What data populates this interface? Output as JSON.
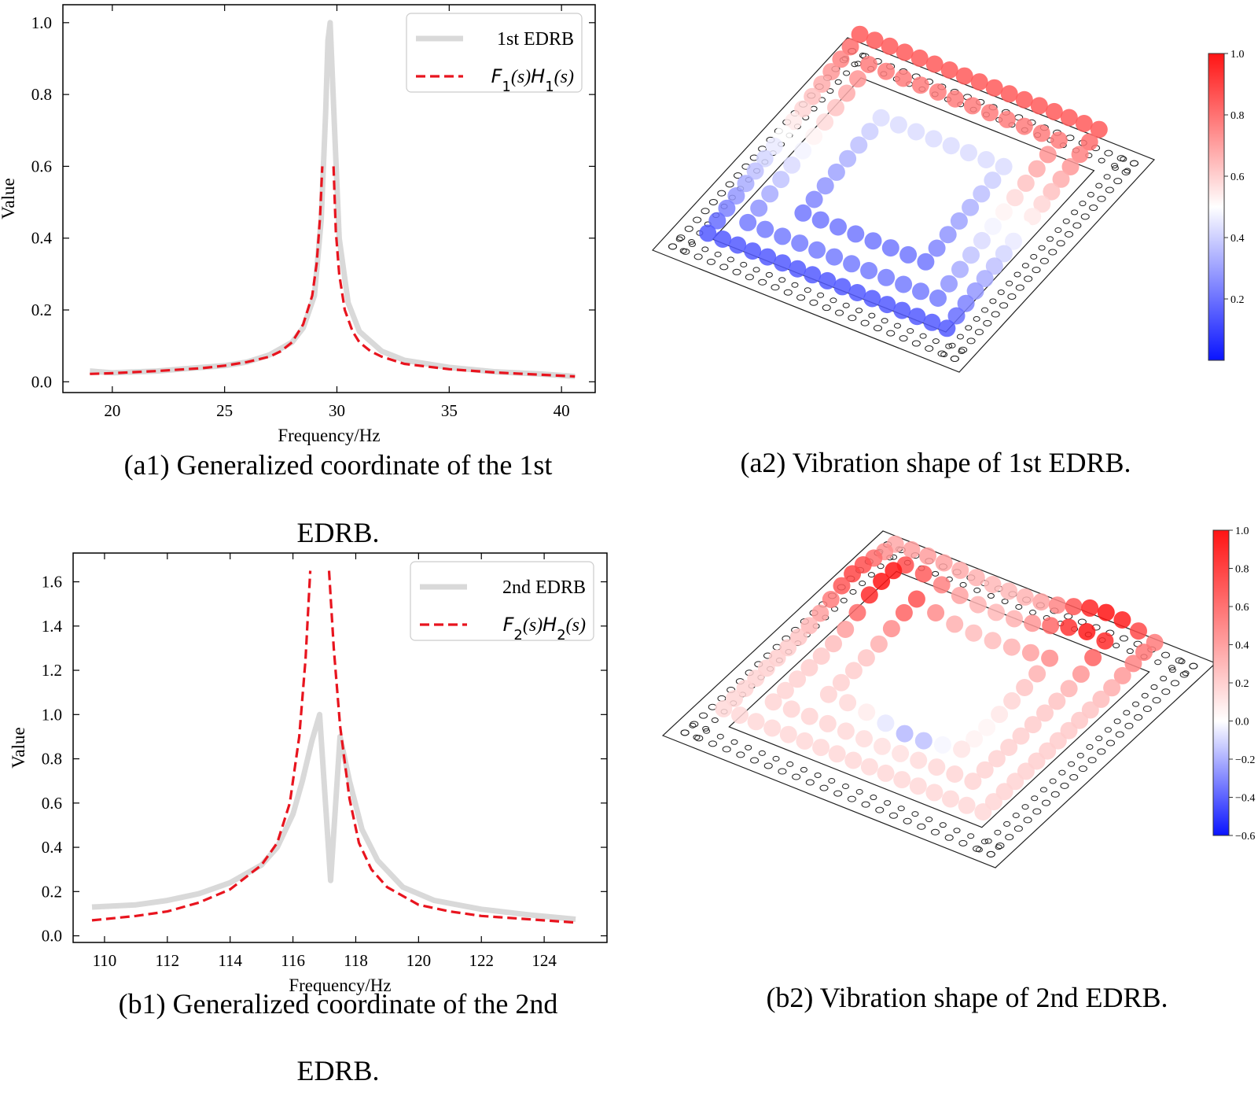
{
  "captions": {
    "a1_line1": "(a1) Generalized coordinate of the 1st",
    "a1_line2": "EDRB.",
    "a2": "(a2) Vibration shape of 1st EDRB.",
    "b1_line1": "(b1) Generalized coordinate of the 2nd",
    "b1_line2": "EDRB.",
    "b2": "(b2) Vibration shape of 2nd EDRB."
  },
  "colors": {
    "gray_curve": "#d9d9d9",
    "red_dashed": "#e8141e",
    "cmap_low": "#0a14ff",
    "cmap_mid": "#ffffff",
    "cmap_high": "#ff1414"
  },
  "chart_data": [
    {
      "id": "a1",
      "type": "line",
      "xlabel": "Frequency/Hz",
      "ylabel": "Value",
      "xlim": [
        17.8,
        41.5
      ],
      "ylim": [
        -0.03,
        1.05
      ],
      "xticks": [
        20,
        25,
        30,
        35,
        40
      ],
      "yticks": [
        0.0,
        0.2,
        0.4,
        0.6,
        0.8,
        1.0
      ],
      "ytick_decimals": 1,
      "legend_position": "top-right",
      "series": [
        {
          "name": "1st EDRB",
          "style": "solid-gray",
          "x": [
            19.0,
            20.0,
            22.0,
            24.0,
            25.0,
            26.0,
            27.0,
            28.0,
            28.5,
            29.0,
            29.3,
            29.5,
            29.6,
            29.7,
            29.9,
            30.1,
            30.5,
            31.0,
            32.0,
            33.0,
            35.0,
            37.0,
            39.0,
            40.6
          ],
          "y": [
            0.03,
            0.025,
            0.03,
            0.04,
            0.045,
            0.055,
            0.075,
            0.11,
            0.15,
            0.24,
            0.45,
            0.75,
            0.95,
            1.0,
            0.7,
            0.4,
            0.22,
            0.14,
            0.085,
            0.06,
            0.04,
            0.028,
            0.022,
            0.015
          ]
        },
        {
          "name": "$F_1(s)H_1(s)$",
          "style": "dashed-red",
          "x": [
            19.0,
            20.0,
            22.0,
            24.0,
            25.0,
            26.0,
            27.0,
            27.5,
            28.0,
            28.5,
            28.9,
            29.1,
            29.25,
            29.35,
            null,
            29.85,
            29.95,
            30.1,
            30.35,
            30.7,
            31.0,
            31.5,
            32.0,
            33.0,
            35.0,
            37.0,
            39.0,
            40.6
          ],
          "y": [
            0.022,
            0.024,
            0.03,
            0.038,
            0.045,
            0.055,
            0.07,
            0.085,
            0.11,
            0.16,
            0.24,
            0.33,
            0.46,
            0.6,
            null,
            0.6,
            0.42,
            0.3,
            0.2,
            0.14,
            0.11,
            0.085,
            0.07,
            0.05,
            0.035,
            0.026,
            0.02,
            0.015
          ]
        }
      ]
    },
    {
      "id": "b1",
      "type": "line",
      "xlabel": "Frequency/Hz",
      "ylabel": "Value",
      "xlim": [
        109.0,
        126.0
      ],
      "ylim": [
        -0.03,
        1.73
      ],
      "xticks": [
        110,
        112,
        114,
        116,
        118,
        120,
        122,
        124
      ],
      "yticks": [
        0.0,
        0.2,
        0.4,
        0.6,
        0.8,
        1.0,
        1.2,
        1.4,
        1.6
      ],
      "ytick_decimals": 1,
      "legend_position": "top-right",
      "series": [
        {
          "name": "2nd EDRB",
          "style": "solid-gray",
          "x": [
            109.6,
            111.0,
            112.0,
            113.0,
            114.0,
            115.0,
            115.5,
            116.0,
            116.3,
            116.6,
            116.85,
            117.2,
            117.5,
            117.8,
            118.2,
            118.7,
            119.5,
            120.5,
            122.0,
            123.5,
            125.0
          ],
          "y": [
            0.13,
            0.14,
            0.16,
            0.19,
            0.24,
            0.32,
            0.4,
            0.55,
            0.7,
            0.88,
            1.0,
            0.25,
            0.9,
            0.7,
            0.48,
            0.34,
            0.22,
            0.16,
            0.12,
            0.095,
            0.075
          ]
        },
        {
          "name": "$F_2(s)H_2(s)$",
          "style": "dashed-red",
          "x": [
            109.6,
            111.0,
            112.0,
            113.0,
            114.0,
            115.0,
            115.5,
            115.9,
            116.2,
            116.4,
            116.55,
            null,
            117.15,
            117.3,
            117.5,
            117.8,
            118.1,
            118.5,
            119.0,
            120.0,
            121.0,
            122.0,
            123.5,
            125.0
          ],
          "y": [
            0.07,
            0.09,
            0.11,
            0.15,
            0.21,
            0.32,
            0.42,
            0.6,
            0.9,
            1.25,
            1.65,
            null,
            1.65,
            1.3,
            0.95,
            0.62,
            0.42,
            0.3,
            0.22,
            0.14,
            0.11,
            0.09,
            0.075,
            0.06
          ]
        }
      ]
    },
    {
      "id": "a2",
      "type": "scatter",
      "description_3d": "3-D scatter of vibration shape with colorbar",
      "colorbar": {
        "min": 0.0,
        "max": 1.0,
        "ticks": [
          "0.2",
          "0.4",
          "0.6",
          "0.8",
          "1.0"
        ],
        "tick_values": [
          0.2,
          0.4,
          0.6,
          0.8,
          1.0
        ]
      }
    },
    {
      "id": "b2",
      "type": "scatter",
      "description_3d": "3-D scatter of vibration shape with colorbar",
      "colorbar": {
        "min": -0.6,
        "max": 1.0,
        "ticks": [
          "−0.6",
          "−0.4",
          "−0.2",
          "0.0",
          "0.2",
          "0.4",
          "0.6",
          "0.8",
          "1.0"
        ],
        "tick_values": [
          -0.6,
          -0.4,
          -0.2,
          0.0,
          0.2,
          0.4,
          0.6,
          0.8,
          1.0
        ]
      }
    }
  ]
}
